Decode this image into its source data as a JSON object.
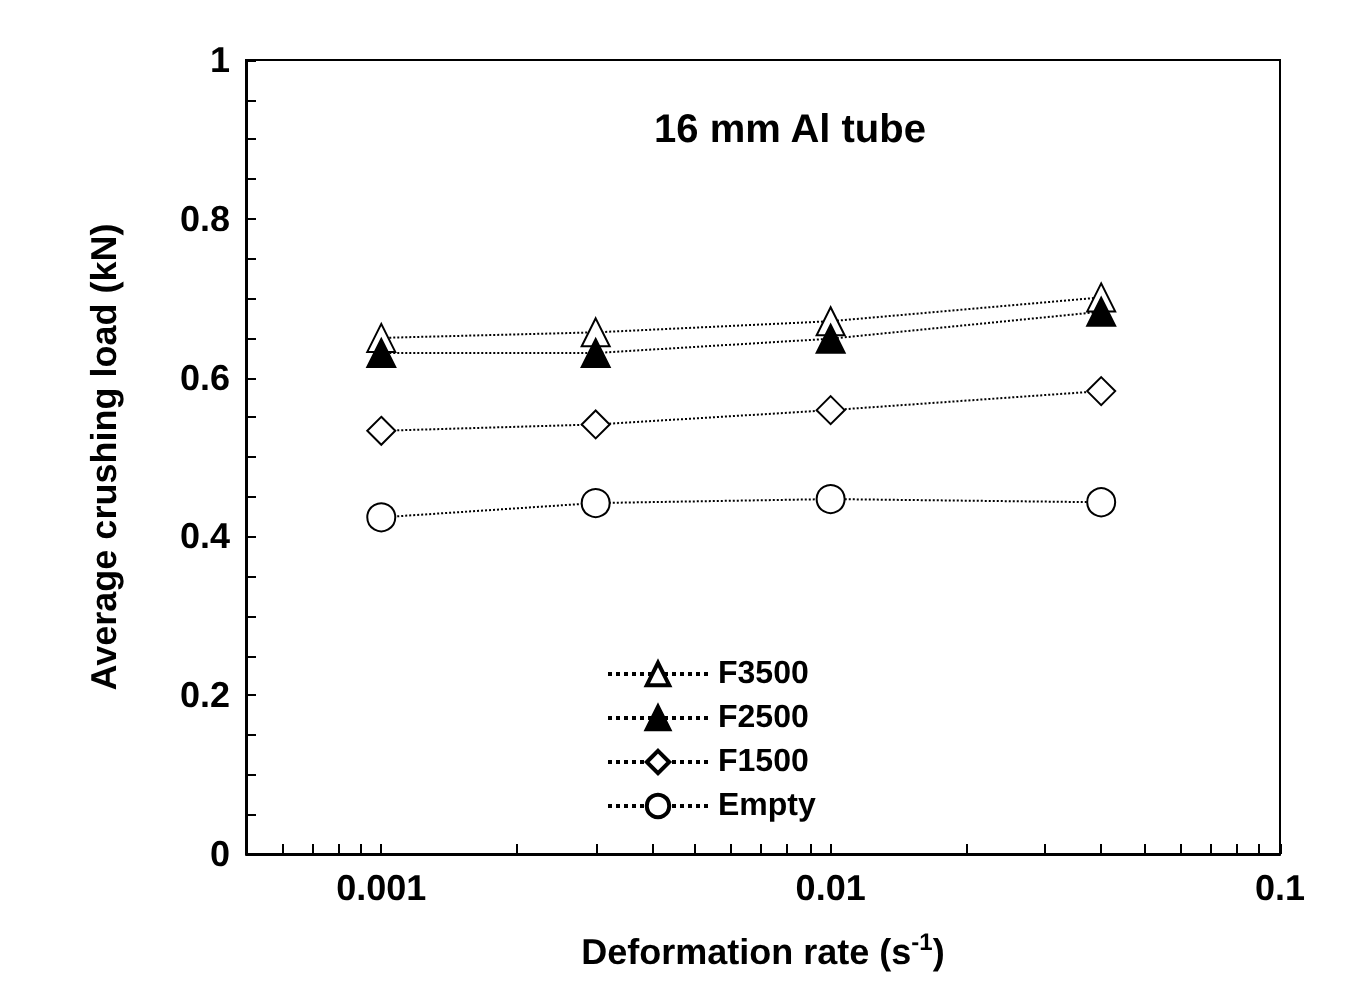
{
  "chart_data": {
    "type": "line",
    "title": "16 mm Al tube",
    "xlabel": "Deformation rate (s$^{-1}$)",
    "ylabel": "Average crushing load (kN)",
    "log": "x",
    "xlim": [
      0.0005,
      0.1
    ],
    "xticks": [
      {
        "value": 0.0006,
        "label": null
      },
      {
        "value": 0.0007,
        "label": null
      },
      {
        "value": 0.0008,
        "label": null
      },
      {
        "value": 0.0009,
        "label": null
      },
      0.001,
      {
        "value": 0.002,
        "label": null
      },
      {
        "value": 0.003,
        "label": null
      },
      {
        "value": 0.004,
        "label": null
      },
      {
        "value": 0.005,
        "label": null
      },
      {
        "value": 0.006,
        "label": null
      },
      {
        "value": 0.007,
        "label": null
      },
      {
        "value": 0.008,
        "label": null
      },
      {
        "value": 0.009,
        "label": null
      },
      0.01,
      {
        "value": 0.02,
        "label": null
      },
      {
        "value": 0.03,
        "label": null
      },
      {
        "value": 0.04,
        "label": null
      },
      {
        "value": 0.05,
        "label": null
      },
      {
        "value": 0.06,
        "label": null
      },
      {
        "value": 0.07,
        "label": null
      },
      {
        "value": 0.08,
        "label": null
      },
      {
        "value": 0.09,
        "label": null
      },
      0.1
    ],
    "ylim": [
      0,
      1
    ],
    "yticks": [
      0,
      {
        "value": 0.05,
        "label": null
      },
      {
        "value": 0.1,
        "label": null
      },
      {
        "value": 0.15,
        "label": null
      },
      0.2,
      {
        "value": 0.25,
        "label": null
      },
      {
        "value": 0.3,
        "label": null
      },
      {
        "value": 0.35,
        "label": null
      },
      0.4,
      {
        "value": 0.45,
        "label": null
      },
      {
        "value": 0.5,
        "label": null
      },
      {
        "value": 0.55,
        "label": null
      },
      0.6,
      {
        "value": 0.65,
        "label": null
      },
      {
        "value": 0.7,
        "label": null
      },
      {
        "value": 0.75,
        "label": null
      },
      0.8,
      {
        "value": 0.85,
        "label": null
      },
      {
        "value": 0.9,
        "label": null
      },
      {
        "value": 0.95,
        "label": null
      },
      1
    ],
    "x": [
      0.001,
      0.003,
      0.01,
      0.04
    ],
    "grid": false,
    "legend": "bottom",
    "line_style": "dotted",
    "series": [
      {
        "name": "F3500",
        "color": "#ffffff",
        "marker": "triangle",
        "values": [
          0.65,
          0.657,
          0.671,
          0.701
        ]
      },
      {
        "name": "F2500",
        "color": "#000000",
        "marker": "triangle",
        "values": [
          0.631,
          0.631,
          0.649,
          0.683
        ]
      },
      {
        "name": "F1500",
        "color": "#ffffff",
        "marker": "diamond",
        "values": [
          0.533,
          0.541,
          0.559,
          0.583
        ]
      },
      {
        "name": "Empty",
        "color": "#ffffff",
        "marker": "circle",
        "values": [
          0.424,
          0.442,
          0.447,
          0.443
        ]
      }
    ]
  }
}
